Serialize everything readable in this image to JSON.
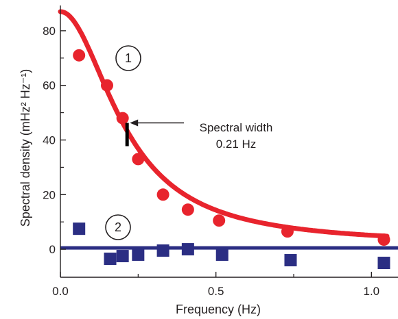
{
  "chart_data": {
    "type": "scatter",
    "xlabel": "Frequency (Hz)",
    "ylabel": "Spectral density (mHz² Hz⁻¹)",
    "xlim": [
      0.0,
      1.05
    ],
    "ylim": [
      -8,
      88
    ],
    "x_ticks": [
      {
        "value": 0.0,
        "label": "0.0"
      },
      {
        "value": 0.5,
        "label": "0.5"
      },
      {
        "value": 1.0,
        "label": "1.0"
      }
    ],
    "y_ticks": [
      {
        "value": 0,
        "label": "0"
      },
      {
        "value": 20,
        "label": "20"
      },
      {
        "value": 40,
        "label": "40"
      },
      {
        "value": 60,
        "label": "60"
      },
      {
        "value": 80,
        "label": "80"
      }
    ],
    "grid": false,
    "series": [
      {
        "label_marker": "1",
        "color": "#e8242d",
        "marker": "circle",
        "points": [
          {
            "x": 0.06,
            "y": 71
          },
          {
            "x": 0.15,
            "y": 60
          },
          {
            "x": 0.2,
            "y": 48
          },
          {
            "x": 0.25,
            "y": 33
          },
          {
            "x": 0.33,
            "y": 20
          },
          {
            "x": 0.41,
            "y": 14.5
          },
          {
            "x": 0.51,
            "y": 10.5
          },
          {
            "x": 0.73,
            "y": 6.5
          },
          {
            "x": 1.04,
            "y": 3.5
          }
        ],
        "fit": {
          "type": "lorentzian",
          "peak": 87,
          "half_width": 0.21,
          "baseline": 1.5
        }
      },
      {
        "label_marker": "2",
        "color": "#2b2e83",
        "marker": "square",
        "points": [
          {
            "x": 0.06,
            "y": 7.5
          },
          {
            "x": 0.16,
            "y": -3.5
          },
          {
            "x": 0.2,
            "y": -2.5
          },
          {
            "x": 0.25,
            "y": -2
          },
          {
            "x": 0.33,
            "y": -0.5
          },
          {
            "x": 0.41,
            "y": 0
          },
          {
            "x": 0.52,
            "y": -2
          },
          {
            "x": 0.74,
            "y": -4
          },
          {
            "x": 1.04,
            "y": -5
          }
        ],
        "fit": {
          "type": "constant",
          "value": 0.5
        }
      }
    ],
    "annotations": [
      {
        "text_lines": [
          "Spectral width",
          "0.21 Hz"
        ],
        "x": 0.21,
        "y": 42,
        "arrow": true
      }
    ]
  }
}
